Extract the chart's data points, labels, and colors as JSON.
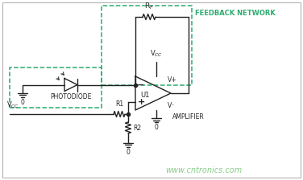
{
  "background_color": "#ffffff",
  "dashed_box_color": "#2aab6e",
  "line_color": "#222222",
  "watermark_color": "#88cc88",
  "feedback_label": "FEEDBACK NETWORK",
  "amplifier_label": "AMPLIFIER",
  "photodiode_label": "PHOTODIODE",
  "u1_label": "U1",
  "r1_label": "R1",
  "r2_label": "R2",
  "vcc_label": "VCC",
  "gnd_label": "0",
  "watermark": "www.cntronics.com",
  "figsize": [
    3.76,
    2.24
  ],
  "dpi": 100
}
